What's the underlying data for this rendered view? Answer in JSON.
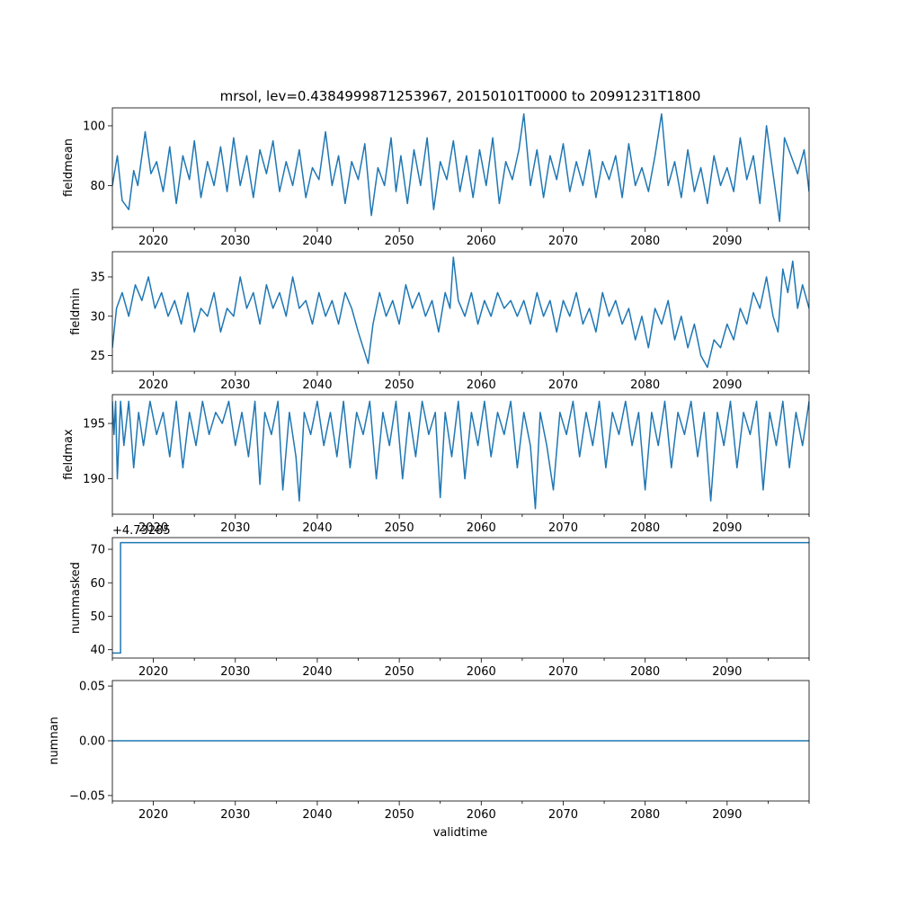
{
  "chart_data": {
    "title": "mrsol, lev=0.4384999871253967, 20150101T0000 to 20991231T1800",
    "xlabel": "validtime",
    "xlim": [
      2015.0,
      2100.0
    ],
    "xticks": [
      2020,
      2030,
      2040,
      2050,
      2060,
      2070,
      2080,
      2090
    ],
    "xminor": [
      2015,
      2025,
      2035,
      2045,
      2055,
      2065,
      2075,
      2085,
      2095,
      2100
    ],
    "panels": [
      {
        "type": "line",
        "ylabel": "fieldmean",
        "ylim": [
          66.0,
          106.0
        ],
        "yticks": [
          80,
          100
        ],
        "x": [
          2015.0,
          2015.6,
          2016.2,
          2017.0,
          2017.6,
          2018.1,
          2019.0,
          2019.7,
          2020.4,
          2021.2,
          2022.0,
          2022.8,
          2023.6,
          2024.4,
          2025.0,
          2025.8,
          2026.6,
          2027.4,
          2028.2,
          2029.0,
          2029.8,
          2030.6,
          2031.4,
          2032.2,
          2033.0,
          2033.8,
          2034.6,
          2035.4,
          2036.2,
          2037.0,
          2037.8,
          2038.6,
          2039.4,
          2040.2,
          2041.0,
          2041.8,
          2042.6,
          2043.4,
          2044.2,
          2045.0,
          2045.8,
          2046.6,
          2047.4,
          2048.2,
          2049.0,
          2049.6,
          2050.2,
          2051.0,
          2051.8,
          2052.6,
          2053.4,
          2054.2,
          2055.0,
          2055.8,
          2056.6,
          2057.4,
          2058.2,
          2059.0,
          2059.8,
          2060.6,
          2061.4,
          2062.2,
          2063.0,
          2063.8,
          2064.6,
          2065.2,
          2066.0,
          2066.8,
          2067.6,
          2068.4,
          2069.2,
          2070.0,
          2070.8,
          2071.6,
          2072.4,
          2073.2,
          2074.0,
          2074.8,
          2075.6,
          2076.4,
          2077.2,
          2078.0,
          2078.8,
          2079.6,
          2080.4,
          2081.2,
          2082.0,
          2082.8,
          2083.6,
          2084.4,
          2085.2,
          2086.0,
          2086.8,
          2087.6,
          2088.4,
          2089.2,
          2090.0,
          2090.8,
          2091.6,
          2092.4,
          2093.2,
          2094.0,
          2094.8,
          2095.6,
          2096.4,
          2097.0,
          2097.8,
          2098.6,
          2099.4,
          2100.0
        ],
        "values": [
          80,
          90,
          75,
          72,
          85,
          80,
          98,
          84,
          88,
          78,
          93,
          74,
          90,
          82,
          95,
          76,
          88,
          80,
          93,
          78,
          96,
          80,
          90,
          76,
          92,
          84,
          95,
          78,
          88,
          80,
          92,
          76,
          86,
          82,
          98,
          80,
          90,
          74,
          88,
          82,
          94,
          70,
          86,
          80,
          96,
          78,
          90,
          74,
          92,
          80,
          96,
          72,
          88,
          82,
          95,
          78,
          90,
          76,
          92,
          80,
          96,
          74,
          88,
          82,
          92,
          104,
          80,
          92,
          76,
          90,
          82,
          94,
          78,
          88,
          80,
          92,
          76,
          88,
          82,
          90,
          76,
          94,
          80,
          86,
          78,
          90,
          104,
          80,
          88,
          76,
          92,
          78,
          86,
          74,
          90,
          80,
          86,
          78,
          96,
          82,
          90,
          74,
          100,
          84,
          68,
          96,
          90,
          84,
          92,
          78
        ]
      },
      {
        "type": "line",
        "ylabel": "fieldmin",
        "ylim": [
          23.0,
          38.2
        ],
        "yticks": [
          25,
          30,
          35
        ],
        "x": [
          2015.0,
          2015.5,
          2016.2,
          2017.0,
          2017.8,
          2018.6,
          2019.4,
          2020.2,
          2021.0,
          2021.8,
          2022.6,
          2023.4,
          2024.2,
          2025.0,
          2025.8,
          2026.6,
          2027.4,
          2028.2,
          2029.0,
          2029.8,
          2030.6,
          2031.4,
          2032.2,
          2033.0,
          2033.8,
          2034.6,
          2035.4,
          2036.2,
          2037.0,
          2037.8,
          2038.6,
          2039.4,
          2040.2,
          2041.0,
          2041.8,
          2042.6,
          2043.4,
          2044.2,
          2045.0,
          2045.6,
          2046.2,
          2046.8,
          2047.6,
          2048.4,
          2049.2,
          2050.0,
          2050.8,
          2051.6,
          2052.4,
          2053.2,
          2054.0,
          2054.8,
          2055.6,
          2056.2,
          2056.6,
          2057.2,
          2058.0,
          2058.8,
          2059.6,
          2060.4,
          2061.2,
          2062.0,
          2062.8,
          2063.6,
          2064.4,
          2065.2,
          2066.0,
          2066.8,
          2067.6,
          2068.4,
          2069.2,
          2070.0,
          2070.8,
          2071.6,
          2072.4,
          2073.2,
          2074.0,
          2074.8,
          2075.6,
          2076.4,
          2077.2,
          2078.0,
          2078.8,
          2079.6,
          2080.4,
          2081.2,
          2082.0,
          2082.8,
          2083.6,
          2084.4,
          2085.2,
          2086.0,
          2086.8,
          2087.6,
          2088.4,
          2089.2,
          2090.0,
          2090.8,
          2091.6,
          2092.4,
          2093.2,
          2094.0,
          2094.8,
          2095.6,
          2096.2,
          2096.8,
          2097.4,
          2098.0,
          2098.6,
          2099.2,
          2100.0
        ],
        "values": [
          26,
          31,
          33,
          30,
          34,
          32,
          35,
          31,
          33,
          30,
          32,
          29,
          33,
          28,
          31,
          30,
          33,
          28,
          31,
          30,
          35,
          31,
          33,
          29,
          34,
          31,
          33,
          30,
          35,
          31,
          32,
          29,
          33,
          30,
          32,
          29,
          33,
          31,
          28,
          26,
          24,
          29,
          33,
          30,
          32,
          29,
          34,
          31,
          33,
          30,
          32,
          28,
          33,
          31,
          37.5,
          32,
          30,
          33,
          29,
          32,
          30,
          33,
          31,
          32,
          30,
          32,
          29,
          33,
          30,
          32,
          28,
          32,
          30,
          33,
          29,
          31,
          28,
          33,
          30,
          32,
          29,
          31,
          27,
          30,
          26,
          31,
          29,
          32,
          27,
          30,
          26,
          29,
          25,
          23.5,
          27,
          26,
          29,
          27,
          31,
          29,
          33,
          31,
          35,
          30,
          28,
          36,
          33,
          37,
          31,
          34,
          31
        ]
      },
      {
        "type": "line",
        "ylabel": "fieldmax",
        "ylim": [
          186.8,
          197.6
        ],
        "yticks": [
          190,
          195
        ],
        "x": [
          2015.0,
          2015.2,
          2015.4,
          2015.6,
          2016.0,
          2016.4,
          2017.0,
          2017.6,
          2018.2,
          2018.8,
          2019.6,
          2020.4,
          2021.2,
          2022.0,
          2022.8,
          2023.6,
          2024.4,
          2025.2,
          2026.0,
          2026.8,
          2027.6,
          2028.4,
          2029.2,
          2030.0,
          2030.8,
          2031.6,
          2032.4,
          2033.0,
          2033.6,
          2034.4,
          2035.2,
          2035.8,
          2036.6,
          2037.4,
          2037.8,
          2038.4,
          2039.2,
          2040.0,
          2040.8,
          2041.6,
          2042.4,
          2043.2,
          2044.0,
          2044.8,
          2045.6,
          2046.4,
          2047.2,
          2048.0,
          2048.8,
          2049.6,
          2050.4,
          2051.2,
          2052.0,
          2052.8,
          2053.6,
          2054.4,
          2055.0,
          2055.6,
          2056.4,
          2057.2,
          2058.0,
          2058.8,
          2059.6,
          2060.4,
          2061.2,
          2062.0,
          2062.8,
          2063.6,
          2064.4,
          2065.2,
          2066.0,
          2066.6,
          2067.2,
          2068.0,
          2068.8,
          2069.6,
          2070.4,
          2071.2,
          2072.0,
          2072.8,
          2073.6,
          2074.4,
          2075.2,
          2076.0,
          2076.8,
          2077.6,
          2078.4,
          2079.2,
          2080.0,
          2080.8,
          2081.6,
          2082.4,
          2083.2,
          2084.0,
          2084.8,
          2085.6,
          2086.4,
          2087.2,
          2088.0,
          2088.8,
          2089.6,
          2090.4,
          2091.2,
          2092.0,
          2092.8,
          2093.6,
          2094.4,
          2095.2,
          2096.0,
          2096.8,
          2097.6,
          2098.4,
          2099.2,
          2100.0
        ],
        "values": [
          197,
          194,
          197,
          190,
          197,
          193,
          197,
          191,
          196,
          193,
          197,
          194,
          196,
          192,
          197,
          191,
          196,
          193,
          197,
          194,
          196,
          195,
          197,
          193,
          196,
          192,
          197,
          189.5,
          196,
          194,
          197,
          189,
          196,
          192,
          188,
          196,
          194,
          197,
          193,
          196,
          192,
          197,
          191,
          196,
          194,
          197,
          190,
          196,
          193,
          197,
          190,
          196,
          192,
          197,
          194,
          196,
          188.3,
          196,
          192,
          197,
          190,
          196,
          193,
          197,
          192,
          196,
          194,
          197,
          191,
          196,
          193,
          187.3,
          196,
          193,
          189,
          196,
          194,
          197,
          192,
          196,
          193,
          197,
          191,
          196,
          194,
          197,
          193,
          196,
          189,
          196,
          193,
          197,
          191,
          196,
          194,
          197,
          192,
          196,
          188,
          196,
          193,
          197,
          191,
          196,
          194,
          197,
          189,
          196,
          193,
          197,
          191,
          196,
          193,
          197
        ]
      },
      {
        "type": "line",
        "ylabel": "nummasked",
        "offset_text": "+4.73285",
        "ylim": [
          37.5,
          73.5
        ],
        "yticks": [
          40,
          50,
          60,
          70
        ],
        "x": [
          2015.0,
          2016.0,
          2016.0,
          2100.0
        ],
        "values": [
          39,
          39,
          72,
          72
        ]
      },
      {
        "type": "line",
        "ylabel": "numnan",
        "ylim": [
          -0.055,
          0.055
        ],
        "yticks": [
          -0.05,
          0.0,
          0.05
        ],
        "ytick_labels": [
          "−0.05",
          "0.00",
          "0.05"
        ],
        "x": [
          2015.0,
          2100.0
        ],
        "values": [
          0,
          0
        ]
      }
    ]
  }
}
